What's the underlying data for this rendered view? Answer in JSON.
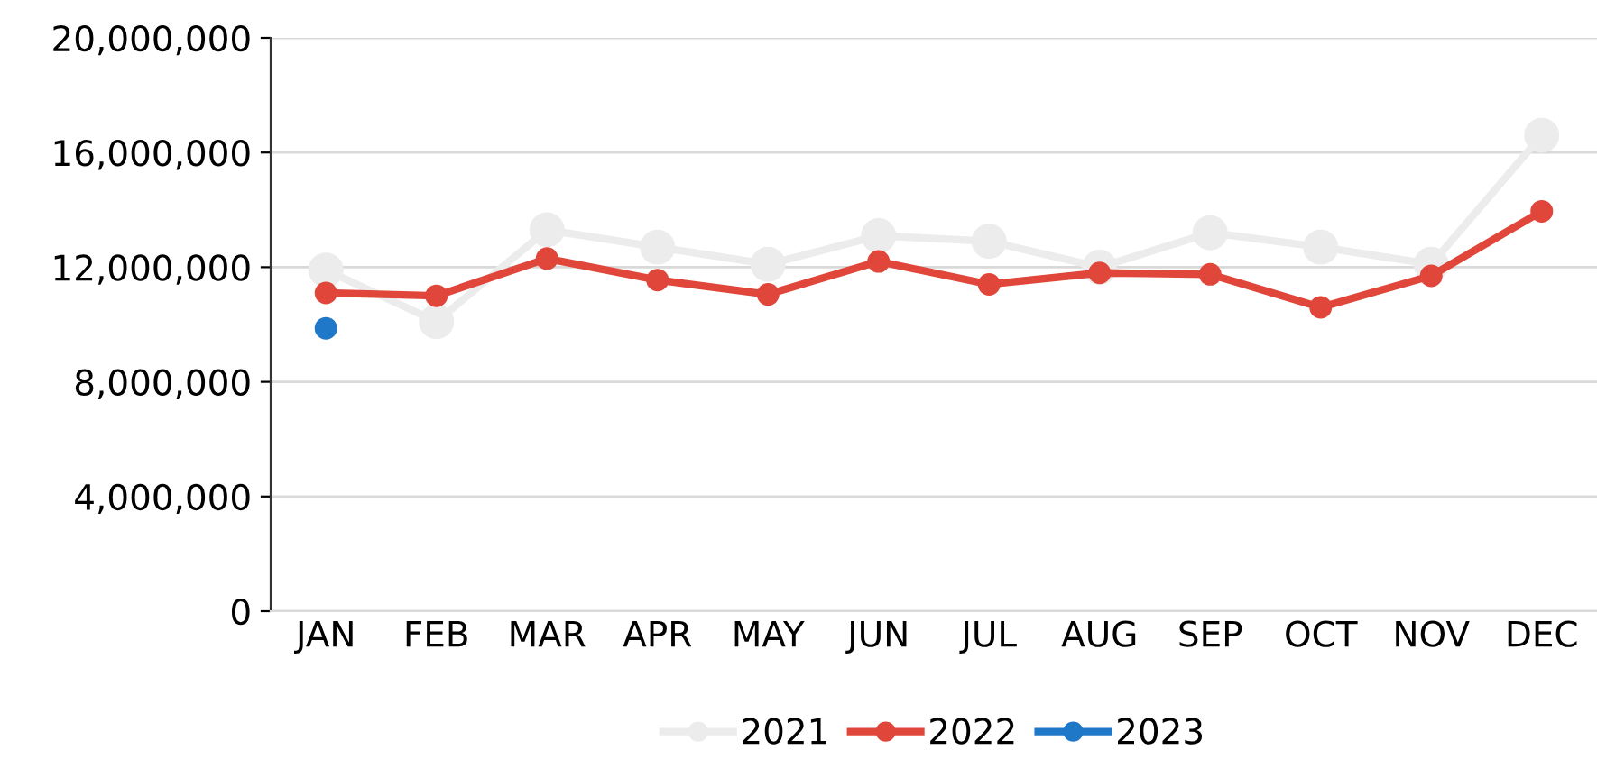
{
  "chart_data": {
    "type": "line",
    "categories": [
      "JAN",
      "FEB",
      "MAR",
      "APR",
      "MAY",
      "JUN",
      "JUL",
      "AUG",
      "SEP",
      "OCT",
      "NOV",
      "DEC"
    ],
    "series": [
      {
        "name": "2021",
        "color": "#ececec",
        "values": [
          11900000,
          10100000,
          13300000,
          12700000,
          12100000,
          13100000,
          12900000,
          12000000,
          13200000,
          12700000,
          12100000,
          16600000
        ]
      },
      {
        "name": "2022",
        "color": "#e0463a",
        "values": [
          11100000,
          11000000,
          12300000,
          11550000,
          11050000,
          12200000,
          11400000,
          11800000,
          11750000,
          10600000,
          11700000,
          13950000
        ]
      },
      {
        "name": "2023",
        "color": "#1f78c8",
        "values": [
          9870000,
          null,
          null,
          null,
          null,
          null,
          null,
          null,
          null,
          null,
          null,
          null
        ]
      }
    ],
    "ylim": [
      0,
      20000000
    ],
    "yticks": [
      {
        "value": 0,
        "label": "0"
      },
      {
        "value": 4000000,
        "label": "4,000,000"
      },
      {
        "value": 8000000,
        "label": "8,000,000"
      },
      {
        "value": 12000000,
        "label": "12,000,000"
      },
      {
        "value": 16000000,
        "label": "16,000,000"
      },
      {
        "value": 20000000,
        "label": "20,000,000"
      }
    ],
    "grid": "y",
    "legend": "bottom",
    "marker": "circle",
    "line_style": "solid"
  }
}
